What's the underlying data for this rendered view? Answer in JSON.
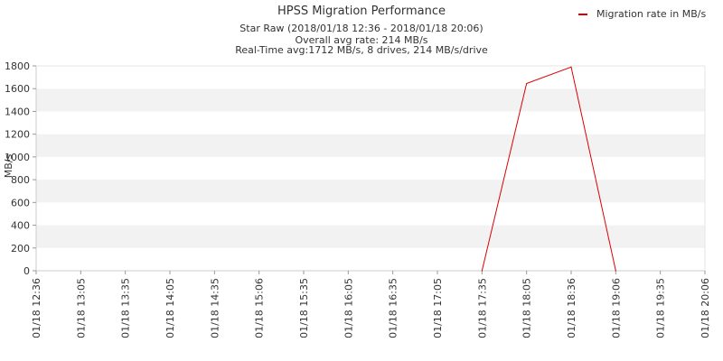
{
  "chart_data": {
    "type": "line",
    "title": "HPSS Migration Performance",
    "subtitle_lines": [
      "Star Raw (2018/01/18 12:36 - 2018/01/18 20:06)",
      "Overall avg rate: 214 MB/s",
      "Real-Time avg:1712 MB/s, 8 drives, 214 MB/s/drive"
    ],
    "xlabel": "",
    "ylabel": "MB/s",
    "ylim": [
      0,
      1800
    ],
    "y_ticks": [
      0,
      200,
      400,
      600,
      800,
      1000,
      1200,
      1400,
      1600,
      1800
    ],
    "x_ticks": [
      "01/18 12:36",
      "01/18 13:05",
      "01/18 13:35",
      "01/18 14:05",
      "01/18 14:35",
      "01/18 15:06",
      "01/18 15:35",
      "01/18 16:05",
      "01/18 16:35",
      "01/18 17:05",
      "01/18 17:35",
      "01/18 18:05",
      "01/18 18:36",
      "01/18 19:06",
      "01/18 19:35",
      "01/18 20:06"
    ],
    "grid": "alternating horizontal bands",
    "legend_position": "top-right",
    "series": [
      {
        "name": "Migration rate in MB/s",
        "color": "#dd0000",
        "points": [
          {
            "x": "01/18 17:35",
            "y": 0
          },
          {
            "x": "01/18 18:05",
            "y": 1645
          },
          {
            "x": "01/18 18:36",
            "y": 1790
          },
          {
            "x": "01/18 19:06",
            "y": 0
          }
        ]
      }
    ]
  }
}
